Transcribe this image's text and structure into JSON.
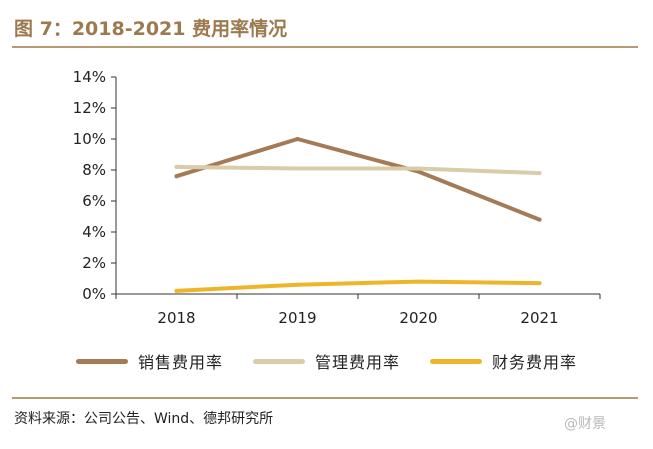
{
  "header": {
    "title": "图 7：2018-2021 费用率情况"
  },
  "footer": {
    "source": "资料来源：公司公告、Wind、德邦研究所",
    "watermark": "@财景"
  },
  "colors": {
    "sales": "#a47a57",
    "admin": "#d9cca8",
    "finance": "#edb62a",
    "axis": "#333333"
  },
  "chart_data": {
    "type": "line",
    "title": "图 7：2018-2021 费用率情况",
    "categories": [
      "2018",
      "2019",
      "2020",
      "2021"
    ],
    "y_ticks": [
      "0%",
      "2%",
      "4%",
      "6%",
      "8%",
      "10%",
      "12%",
      "14%"
    ],
    "ylim": [
      0,
      14
    ],
    "grid": false,
    "legend_position": "bottom",
    "series": [
      {
        "name": "销售费用率",
        "color": "#a47a57",
        "values": [
          7.6,
          10.0,
          7.9,
          4.8
        ]
      },
      {
        "name": "管理费用率",
        "color": "#d9cca8",
        "values": [
          8.2,
          8.1,
          8.1,
          7.8
        ]
      },
      {
        "name": "财务费用率",
        "color": "#edb62a",
        "values": [
          0.2,
          0.6,
          0.8,
          0.7
        ]
      }
    ]
  }
}
